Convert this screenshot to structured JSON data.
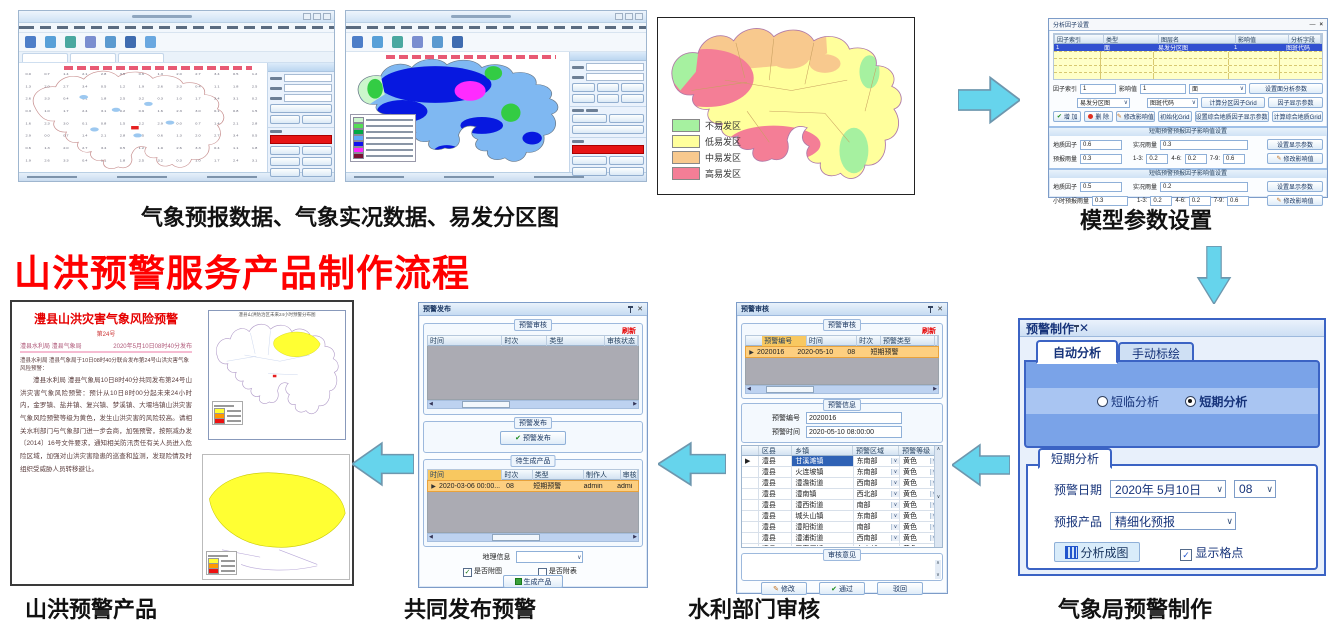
{
  "flow": {
    "title": "山洪预警服务产品制作流程",
    "caption_inputs": "气象预报数据、气象实况数据、易发分区图",
    "caption_model": "模型参数设置",
    "caption_product": "山洪预警产品",
    "caption_publish": "共同发布预警",
    "caption_review": "水利部门审核",
    "caption_make": "气象局预警制作",
    "arrow_fill": "#66d4ec",
    "arrow_stroke": "#6e97ae"
  },
  "risk_map": {
    "legend": [
      {
        "color": "#a6f1a0",
        "label": "不易发区"
      },
      {
        "color": "#ffff9c",
        "label": "低易发区"
      },
      {
        "color": "#f8c98e",
        "label": "中易发区"
      },
      {
        "color": "#f47e96",
        "label": "高易发区"
      }
    ]
  },
  "win2": {
    "legend_colors": [
      "#ccf6cc",
      "#55dd55",
      "#00aa44",
      "#5fa8f8",
      "#1010ee",
      "#ff22ff",
      "#7a1033"
    ]
  },
  "param_dialog": {
    "title": "分析因子设置",
    "min_glyph": "—",
    "close_glyph": "×",
    "columns": [
      "因子索引",
      "类型",
      "图层名",
      "影响值",
      "分析字段"
    ],
    "selected_row": [
      "1",
      "面",
      "易发分区图",
      "1",
      "图斑代码"
    ],
    "factor_index_label": "因子索引",
    "factor_index_value": "1",
    "impact_label": "影响值",
    "impact_value": "1",
    "geom_type_value": "面",
    "layer_value": "易发分区图",
    "field_value": "图斑代码",
    "btn_set_area": "设置面分析参数",
    "btn_calc_zone": "计算分区因子Grid",
    "btn_factor_disp": "因子显示参数",
    "btn_add": "增 加",
    "btn_del": "删 除",
    "btn_modify": "修改影响值",
    "btn_init": "初始化Grid",
    "btn_set_combined": "设置综合地质因子显示参数",
    "btn_calc_combined": "计算综合地质Grid",
    "sec1_title": "短期预警预报因子影响值设置",
    "sec2_title": "短临预警预报因子影响值设置",
    "geo_label": "地质因子",
    "live_label": "实况雨量",
    "fc_label": "预报雨量",
    "fc2_label": "小时预报雨量",
    "seg1_label": "1-3:",
    "seg2_label": "4-6:",
    "seg3_label": "7-9:",
    "sec1": {
      "geo": "0.6",
      "live": "0.3",
      "fc": "0.3",
      "r13": "0.2",
      "r46": "0.2",
      "r79": "0.6"
    },
    "sec2": {
      "geo": "0.5",
      "live": "0.2",
      "fc": "0.3",
      "r13": "0.2",
      "r46": "0.2",
      "r79": "0.6"
    },
    "btn_set_disp": "设置显示参数",
    "btn_mod_impact": "修改影响值"
  },
  "publish_dialog": {
    "title": "预警发布",
    "group_review": "预警审核",
    "refresh": "刷新",
    "review_columns": [
      "时间",
      "时次",
      "类型",
      "审核状态"
    ],
    "group_publish": "预警发布",
    "btn_publish": "预警发布",
    "group_pending": "待生成产品",
    "pending_columns": [
      "时间",
      "时次",
      "类型",
      "制作人",
      "审核"
    ],
    "pending_row": {
      "time": "2020-03-06 00:00...",
      "hour": "08",
      "type": "短期预警",
      "maker": "admin",
      "auditor": "admi"
    },
    "geo_label": "地理信息",
    "chk_map": "是否附图",
    "chk_table": "是否附表",
    "btn_generate": "生成产品"
  },
  "review_dialog": {
    "title": "预警审核",
    "group_review": "预警审核",
    "refresh": "刷新",
    "columns": [
      "预警编号",
      "时间",
      "时次",
      "预警类型",
      "可"
    ],
    "selected_row": {
      "id": "2020016",
      "date": "2020-05-10",
      "hour": "08",
      "type": "短期预警"
    },
    "group_info": "预警信息",
    "info_id_label": "预警编号",
    "info_id": "2020016",
    "info_time_label": "预警时间",
    "info_time": "2020-05-10 08:00:00",
    "town_columns": [
      "区县",
      "乡镇",
      "预警区域",
      "预警等级"
    ],
    "towns": [
      {
        "county": "澧县",
        "town": "甘溪滩镇",
        "region": "东南部",
        "level": "黄色"
      },
      {
        "county": "澧县",
        "town": "火连坡镇",
        "region": "东南部",
        "level": "黄色"
      },
      {
        "county": "澧县",
        "town": "澧澹街道",
        "region": "西南部",
        "level": "黄色"
      },
      {
        "county": "澧县",
        "town": "澧南镇",
        "region": "西北部",
        "level": "黄色"
      },
      {
        "county": "澧县",
        "town": "澧西街道",
        "region": "南部",
        "level": "黄色"
      },
      {
        "county": "澧县",
        "town": "城头山镇",
        "region": "东南部",
        "level": "黄色"
      },
      {
        "county": "澧县",
        "town": "澧阳街道",
        "region": "南部",
        "level": "黄色"
      },
      {
        "county": "澧县",
        "town": "澧浦街道",
        "region": "西南部",
        "level": "黄色"
      },
      {
        "county": "澧县",
        "town": "王家厂镇",
        "region": "东南部",
        "level": "黄色"
      }
    ],
    "group_opinion": "审核意见",
    "btn_modify": "修改",
    "btn_pass": "通过",
    "btn_reject": "驳回"
  },
  "make_dialog": {
    "title": "预警制作",
    "tab_auto": "自动分析",
    "tab_manual": "手动标绘",
    "radio_short_now": "短临分析",
    "radio_short_term": "短期分析",
    "subtab": "短期分析",
    "date_label": "预警日期",
    "date_value": "2020年 5月10日",
    "hour_value": "08",
    "product_label": "预报产品",
    "product_value": "精细化预报",
    "btn_analyze": "分析成图",
    "chk_grid": "显示格点"
  },
  "document": {
    "title": "澧县山洪灾害气象风险预警",
    "issue_no": "第24号",
    "issuer": "澧县水利局  澧县气象局",
    "issue_time": "2020年5月10日08时40分发布",
    "lead": "澧县水利局 澧县气象局于10日08时40分联合发布第24号山洪灾害气象风险预警：",
    "body": "澧县水利局 澧县气象局10日8时40分共同发布第24号山洪灾害气象风险预警：预计从10日8时00分起未来24小时内，金罗镇、盐井镇、复兴镇、梦溪镇、大堰垱镇山洪灾害气象风险预警等级为黄色，发生山洪灾害的风险较高。请相关水利部门与气象部门进一步会商，加强预警，按照减办发〔2014〕16号文件要求，通知相关防汛责任有关人员进入危险区域，加强对山洪灾害隐患的巡查和监测，发现险情及时组织受威胁人员转移避让。",
    "map_title": "澧县山洪防治区未来24小时预警分布图"
  }
}
